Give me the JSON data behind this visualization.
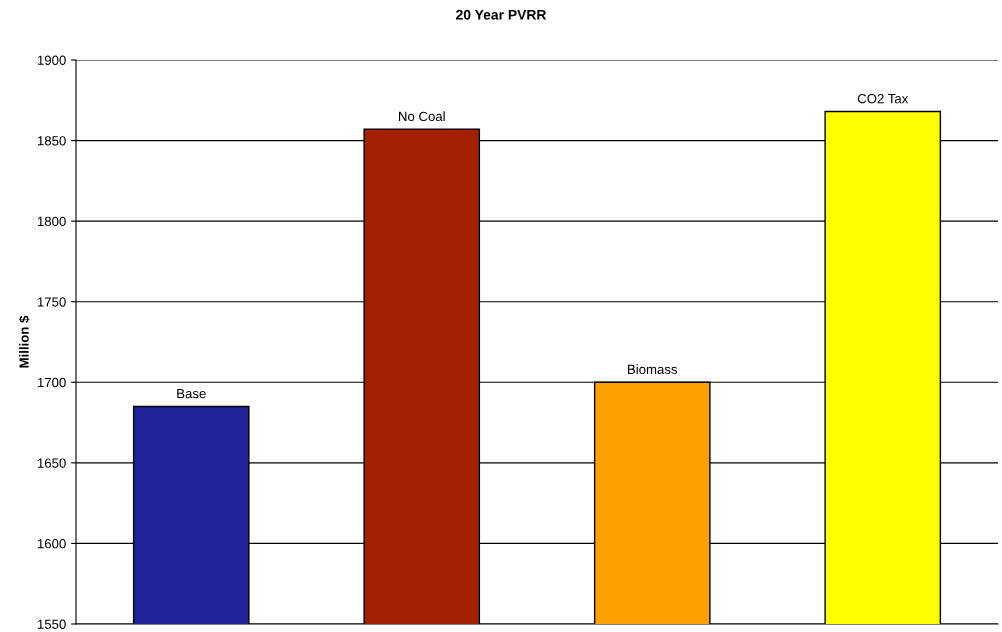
{
  "chart_data": {
    "type": "bar",
    "title": "20 Year PVRR",
    "ylabel": "Million $",
    "categories": [
      "Base",
      "No Coal",
      "Biomass",
      "CO2 Tax"
    ],
    "values": [
      1685,
      1857,
      1700,
      1868
    ],
    "colors": [
      "#22229a",
      "#a02000",
      "#ffa000",
      "#ffff00"
    ],
    "ylim": [
      1550,
      1900
    ],
    "yticks": [
      1550,
      1600,
      1650,
      1700,
      1750,
      1800,
      1850,
      1900
    ],
    "grid": "y"
  }
}
